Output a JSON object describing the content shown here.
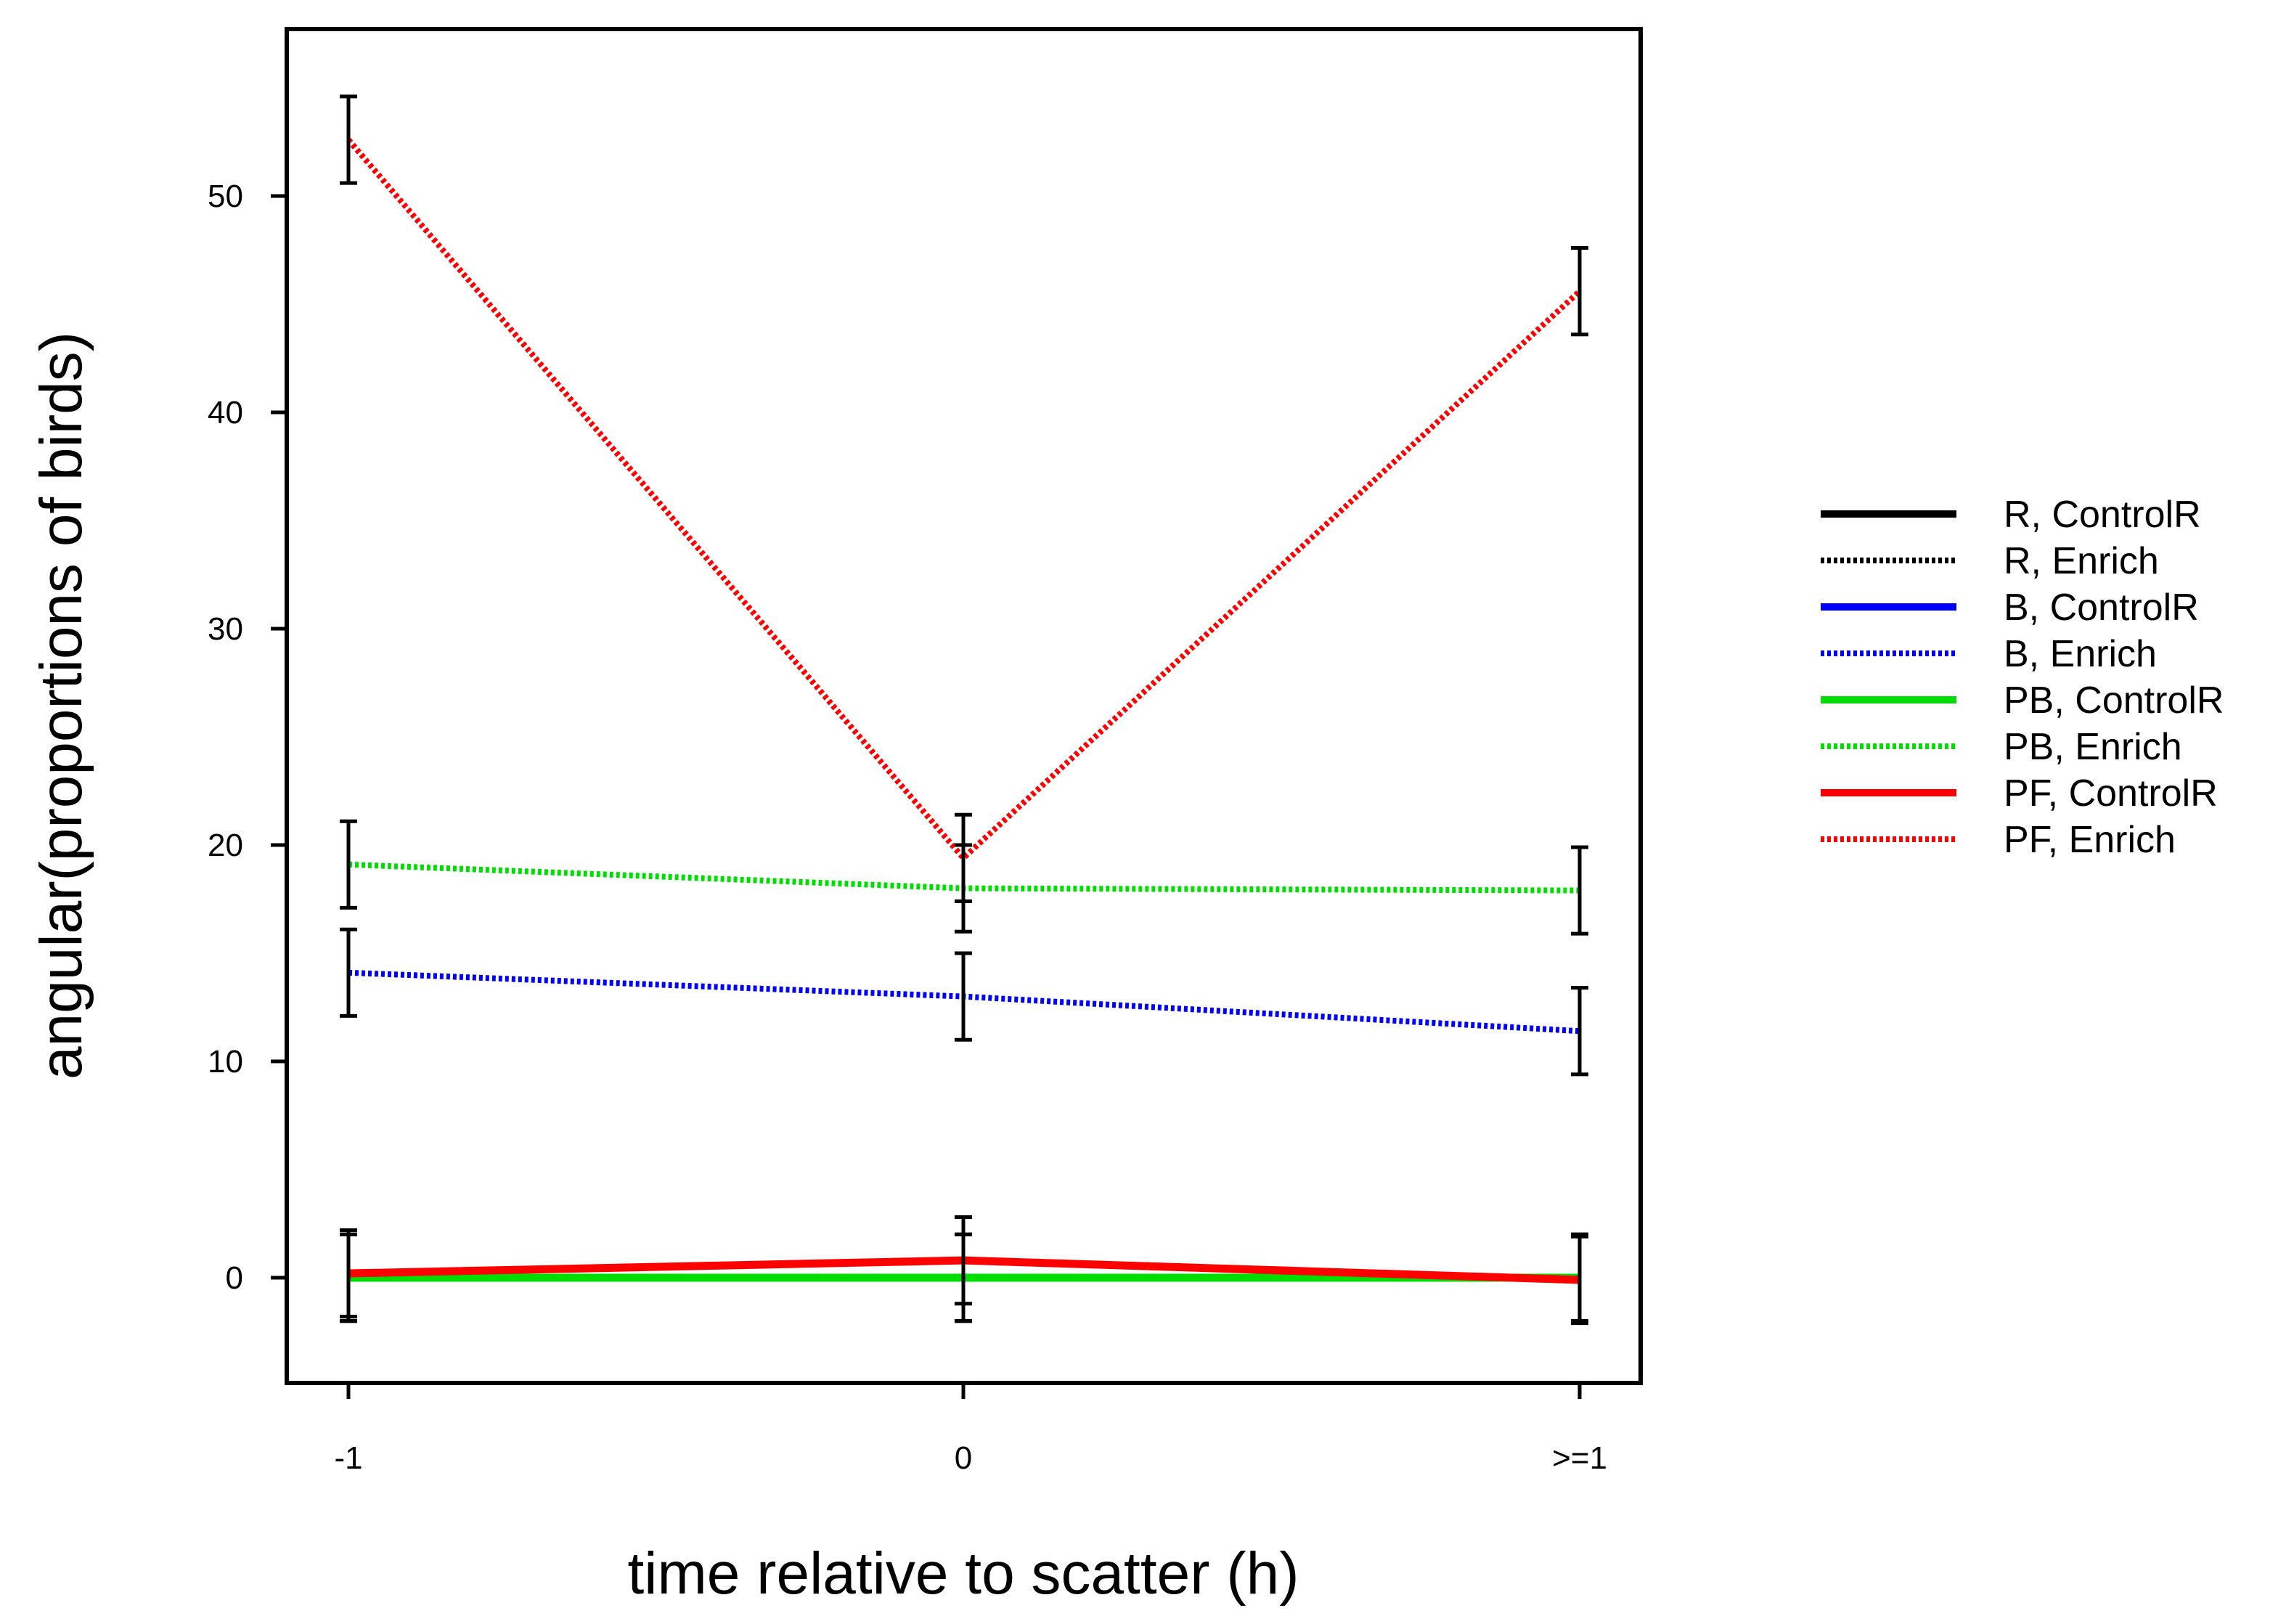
{
  "chart_data": {
    "type": "line",
    "title": "",
    "xlabel": "time relative to scatter (h)",
    "ylabel": "angular(proportions of birds)",
    "categories": [
      "-1",
      "0",
      ">=1"
    ],
    "ylim": [
      -5,
      57.5
    ],
    "yticks": [
      0,
      10,
      20,
      30,
      40,
      50
    ],
    "legend_position": "right",
    "series": [
      {
        "name": "R, ControlR",
        "color": "#000000",
        "style": "solid",
        "values": [
          0,
          0,
          0
        ],
        "errors": [
          2,
          2,
          2
        ]
      },
      {
        "name": "R, Enrich",
        "color": "#000000",
        "style": "dotted",
        "values": [
          0,
          0,
          0
        ],
        "errors": [
          2,
          2,
          2
        ]
      },
      {
        "name": "B, ControlR",
        "color": "#0000ff",
        "style": "solid",
        "values": [
          0,
          0,
          0
        ],
        "errors": [
          2,
          2,
          2
        ]
      },
      {
        "name": "B, Enrich",
        "color": "#0000ff",
        "style": "dotted",
        "values": [
          14.1,
          13.0,
          11.4
        ],
        "errors": [
          2,
          2,
          2
        ]
      },
      {
        "name": "PB, ControlR",
        "color": "#00dd00",
        "style": "solid",
        "values": [
          0,
          0,
          0
        ],
        "errors": [
          2,
          2,
          2
        ]
      },
      {
        "name": "PB, Enrich",
        "color": "#00dd00",
        "style": "dotted",
        "values": [
          19.1,
          18.0,
          17.9
        ],
        "errors": [
          2,
          2,
          2
        ]
      },
      {
        "name": "PF, ControlR",
        "color": "#ff0000",
        "style": "solid",
        "values": [
          0.2,
          0.8,
          -0.1
        ],
        "errors": [
          2,
          2,
          2
        ]
      },
      {
        "name": "PF, Enrich",
        "color": "#ff0000",
        "style": "dotted",
        "values": [
          52.6,
          19.4,
          45.6
        ],
        "errors": [
          2,
          2,
          2
        ]
      }
    ]
  }
}
